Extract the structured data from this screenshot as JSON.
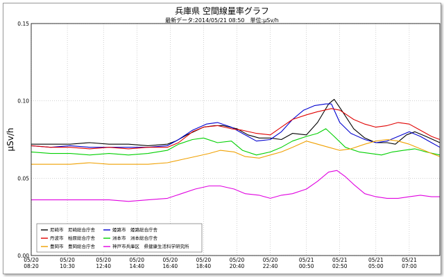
{
  "chart_data": {
    "type": "line",
    "title": "兵庫県 空間線量率グラフ",
    "subtitle": "最新データ:2014/05/21 08:50　単位:μSv/h",
    "ylabel": "μSv/h",
    "xlabel": "",
    "ylim": [
      0,
      0.15
    ],
    "yticks": [
      "0.00",
      "0.05",
      "0.10",
      "0.15"
    ],
    "xlim": [
      "05/20 08:20",
      "05/21 08:50"
    ],
    "xticks": [
      {
        "t": "05/20 08:20",
        "date": "05/20",
        "time": "08:20"
      },
      {
        "t": "05/20 10:30",
        "date": "05/20",
        "time": "10:30"
      },
      {
        "t": "05/20 12:40",
        "date": "05/20",
        "time": "12:40"
      },
      {
        "t": "05/20 14:40",
        "date": "05/20",
        "time": "14:40"
      },
      {
        "t": "05/20 16:40",
        "date": "05/20",
        "time": "16:40"
      },
      {
        "t": "05/20 18:40",
        "date": "05/20",
        "time": "18:40"
      },
      {
        "t": "05/20 20:40",
        "date": "05/20",
        "time": "20:40"
      },
      {
        "t": "05/20 22:40",
        "date": "05/20",
        "time": "22:40"
      },
      {
        "t": "05/21 00:50",
        "date": "05/21",
        "time": "00:50"
      },
      {
        "t": "05/21 02:50",
        "date": "05/21",
        "time": "02:50"
      },
      {
        "t": "05/21 05:00",
        "date": "05/21",
        "time": "05:00"
      },
      {
        "t": "05/21 07:00",
        "date": "05/21",
        "time": "07:00"
      }
    ],
    "grid": true,
    "legend_position": "bottom-left",
    "series": [
      {
        "name": "尼崎市　尼崎総合庁舎",
        "color": "#000000",
        "points": [
          [
            "05/20 08:20",
            0.072
          ],
          [
            "05/20 09:30",
            0.072
          ],
          [
            "05/20 10:40",
            0.072
          ],
          [
            "05/20 11:50",
            0.073
          ],
          [
            "05/20 13:00",
            0.072
          ],
          [
            "05/20 14:10",
            0.072
          ],
          [
            "05/20 15:20",
            0.071
          ],
          [
            "05/20 16:30",
            0.072
          ],
          [
            "05/20 17:00",
            0.074
          ],
          [
            "05/20 17:40",
            0.078
          ],
          [
            "05/20 18:40",
            0.083
          ],
          [
            "05/20 19:20",
            0.084
          ],
          [
            "05/20 19:50",
            0.084
          ],
          [
            "05/20 20:40",
            0.082
          ],
          [
            "05/20 21:20",
            0.078
          ],
          [
            "05/20 22:00",
            0.076
          ],
          [
            "05/20 22:40",
            0.076
          ],
          [
            "05/20 23:20",
            0.075
          ],
          [
            "05/21 00:00",
            0.079
          ],
          [
            "05/21 00:50",
            0.078
          ],
          [
            "05/21 01:30",
            0.086
          ],
          [
            "05/21 02:10",
            0.098
          ],
          [
            "05/21 02:30",
            0.101
          ],
          [
            "05/21 03:00",
            0.093
          ],
          [
            "05/21 03:40",
            0.082
          ],
          [
            "05/21 04:20",
            0.076
          ],
          [
            "05/21 05:00",
            0.073
          ],
          [
            "05/21 05:40",
            0.073
          ],
          [
            "05/21 06:10",
            0.072
          ],
          [
            "05/21 06:50",
            0.078
          ],
          [
            "05/21 07:20",
            0.08
          ],
          [
            "05/21 08:00",
            0.077
          ],
          [
            "05/21 08:50",
            0.073
          ]
        ]
      },
      {
        "name": "姫路市　姫路総合庁舎",
        "color": "#0000d0",
        "points": [
          [
            "05/20 08:20",
            0.071
          ],
          [
            "05/20 09:30",
            0.07
          ],
          [
            "05/20 10:40",
            0.071
          ],
          [
            "05/20 11:50",
            0.07
          ],
          [
            "05/20 13:00",
            0.07
          ],
          [
            "05/20 14:10",
            0.07
          ],
          [
            "05/20 15:20",
            0.07
          ],
          [
            "05/20 16:30",
            0.071
          ],
          [
            "05/20 17:10",
            0.075
          ],
          [
            "05/20 18:00",
            0.081
          ],
          [
            "05/20 18:50",
            0.085
          ],
          [
            "05/20 19:30",
            0.086
          ],
          [
            "05/20 20:20",
            0.083
          ],
          [
            "05/20 21:00",
            0.079
          ],
          [
            "05/20 21:50",
            0.074
          ],
          [
            "05/20 22:40",
            0.075
          ],
          [
            "05/20 23:20",
            0.08
          ],
          [
            "05/21 00:00",
            0.088
          ],
          [
            "05/21 00:40",
            0.094
          ],
          [
            "05/21 01:20",
            0.097
          ],
          [
            "05/21 02:00",
            0.098
          ],
          [
            "05/21 02:20",
            0.098
          ],
          [
            "05/21 02:50",
            0.086
          ],
          [
            "05/21 03:30",
            0.079
          ],
          [
            "05/21 04:20",
            0.075
          ],
          [
            "05/21 05:00",
            0.073
          ],
          [
            "05/21 05:40",
            0.074
          ],
          [
            "05/21 06:20",
            0.077
          ],
          [
            "05/21 07:00",
            0.08
          ],
          [
            "05/21 07:40",
            0.077
          ],
          [
            "05/21 08:20",
            0.073
          ],
          [
            "05/21 08:50",
            0.07
          ]
        ]
      },
      {
        "name": "丹波市　柏原総合庁舎",
        "color": "#e00000",
        "points": [
          [
            "05/20 08:20",
            0.071
          ],
          [
            "05/20 09:30",
            0.07
          ],
          [
            "05/20 10:40",
            0.07
          ],
          [
            "05/20 11:50",
            0.069
          ],
          [
            "05/20 13:00",
            0.07
          ],
          [
            "05/20 14:10",
            0.069
          ],
          [
            "05/20 15:20",
            0.07
          ],
          [
            "05/20 16:30",
            0.07
          ],
          [
            "05/20 17:10",
            0.073
          ],
          [
            "05/20 18:00",
            0.08
          ],
          [
            "05/20 18:40",
            0.083
          ],
          [
            "05/20 19:30",
            0.084
          ],
          [
            "05/20 20:20",
            0.082
          ],
          [
            "05/20 21:00",
            0.081
          ],
          [
            "05/20 21:50",
            0.079
          ],
          [
            "05/20 22:40",
            0.078
          ],
          [
            "05/20 23:20",
            0.083
          ],
          [
            "05/21 00:00",
            0.088
          ],
          [
            "05/21 00:50",
            0.091
          ],
          [
            "05/21 01:30",
            0.093
          ],
          [
            "05/21 02:20",
            0.095
          ],
          [
            "05/21 02:50",
            0.094
          ],
          [
            "05/21 03:40",
            0.088
          ],
          [
            "05/21 04:20",
            0.085
          ],
          [
            "05/21 05:00",
            0.083
          ],
          [
            "05/21 05:40",
            0.084
          ],
          [
            "05/21 06:20",
            0.086
          ],
          [
            "05/21 07:00",
            0.085
          ],
          [
            "05/21 07:40",
            0.081
          ],
          [
            "05/21 08:20",
            0.077
          ],
          [
            "05/21 08:50",
            0.075
          ]
        ]
      },
      {
        "name": "洲本市　洲本総合庁舎",
        "color": "#00d000",
        "points": [
          [
            "05/20 08:20",
            0.067
          ],
          [
            "05/20 09:30",
            0.066
          ],
          [
            "05/20 10:40",
            0.066
          ],
          [
            "05/20 11:50",
            0.065
          ],
          [
            "05/20 13:00",
            0.066
          ],
          [
            "05/20 14:10",
            0.065
          ],
          [
            "05/20 15:20",
            0.066
          ],
          [
            "05/20 16:30",
            0.068
          ],
          [
            "05/20 17:10",
            0.072
          ],
          [
            "05/20 18:00",
            0.075
          ],
          [
            "05/20 18:40",
            0.076
          ],
          [
            "05/20 19:30",
            0.073
          ],
          [
            "05/20 20:20",
            0.074
          ],
          [
            "05/20 21:00",
            0.068
          ],
          [
            "05/20 21:50",
            0.065
          ],
          [
            "05/20 22:40",
            0.067
          ],
          [
            "05/20 23:20",
            0.07
          ],
          [
            "05/21 00:00",
            0.074
          ],
          [
            "05/21 00:50",
            0.077
          ],
          [
            "05/21 01:30",
            0.079
          ],
          [
            "05/21 02:00",
            0.082
          ],
          [
            "05/21 02:30",
            0.077
          ],
          [
            "05/21 03:10",
            0.07
          ],
          [
            "05/21 04:00",
            0.067
          ],
          [
            "05/21 04:40",
            0.066
          ],
          [
            "05/21 05:20",
            0.065
          ],
          [
            "05/21 06:00",
            0.067
          ],
          [
            "05/21 06:40",
            0.068
          ],
          [
            "05/21 07:20",
            0.069
          ],
          [
            "05/21 08:00",
            0.067
          ],
          [
            "05/21 08:50",
            0.065
          ]
        ]
      },
      {
        "name": "豊岡市　豊岡総合庁舎",
        "color": "#f0a000",
        "points": [
          [
            "05/20 08:20",
            0.059
          ],
          [
            "05/20 09:30",
            0.059
          ],
          [
            "05/20 10:40",
            0.059
          ],
          [
            "05/20 11:50",
            0.06
          ],
          [
            "05/20 13:00",
            0.059
          ],
          [
            "05/20 14:10",
            0.059
          ],
          [
            "05/20 15:20",
            0.059
          ],
          [
            "05/20 16:30",
            0.06
          ],
          [
            "05/20 17:20",
            0.062
          ],
          [
            "05/20 18:10",
            0.064
          ],
          [
            "05/20 19:00",
            0.066
          ],
          [
            "05/20 19:40",
            0.068
          ],
          [
            "05/20 20:30",
            0.067
          ],
          [
            "05/20 21:10",
            0.064
          ],
          [
            "05/20 22:00",
            0.063
          ],
          [
            "05/20 22:40",
            0.065
          ],
          [
            "05/20 23:20",
            0.067
          ],
          [
            "05/21 00:00",
            0.07
          ],
          [
            "05/21 00:50",
            0.074
          ],
          [
            "05/21 01:30",
            0.072
          ],
          [
            "05/21 02:10",
            0.07
          ],
          [
            "05/21 02:50",
            0.068
          ],
          [
            "05/21 03:30",
            0.069
          ],
          [
            "05/21 04:20",
            0.072
          ],
          [
            "05/21 05:00",
            0.074
          ],
          [
            "05/21 05:40",
            0.075
          ],
          [
            "05/21 06:20",
            0.074
          ],
          [
            "05/21 07:00",
            0.072
          ],
          [
            "05/21 07:40",
            0.069
          ],
          [
            "05/21 08:20",
            0.066
          ],
          [
            "05/21 08:50",
            0.064
          ]
        ]
      },
      {
        "name": "神戸市兵庫区　県健康生活科学研究所",
        "color": "#e000e0",
        "points": [
          [
            "05/20 08:20",
            0.036
          ],
          [
            "05/20 09:30",
            0.036
          ],
          [
            "05/20 10:40",
            0.036
          ],
          [
            "05/20 11:50",
            0.036
          ],
          [
            "05/20 13:00",
            0.036
          ],
          [
            "05/20 14:10",
            0.035
          ],
          [
            "05/20 15:20",
            0.036
          ],
          [
            "05/20 16:30",
            0.037
          ],
          [
            "05/20 17:20",
            0.04
          ],
          [
            "05/20 18:10",
            0.043
          ],
          [
            "05/20 19:00",
            0.045
          ],
          [
            "05/20 19:40",
            0.045
          ],
          [
            "05/20 20:30",
            0.043
          ],
          [
            "05/20 21:10",
            0.04
          ],
          [
            "05/20 22:00",
            0.039
          ],
          [
            "05/20 22:40",
            0.037
          ],
          [
            "05/20 23:20",
            0.039
          ],
          [
            "05/21 00:00",
            0.04
          ],
          [
            "05/21 00:50",
            0.043
          ],
          [
            "05/21 01:30",
            0.048
          ],
          [
            "05/21 02:10",
            0.054
          ],
          [
            "05/21 02:40",
            0.055
          ],
          [
            "05/21 03:10",
            0.051
          ],
          [
            "05/21 03:40",
            0.046
          ],
          [
            "05/21 04:20",
            0.04
          ],
          [
            "05/21 05:00",
            0.038
          ],
          [
            "05/21 05:40",
            0.037
          ],
          [
            "05/21 06:20",
            0.037
          ],
          [
            "05/21 07:00",
            0.038
          ],
          [
            "05/21 07:40",
            0.039
          ],
          [
            "05/21 08:20",
            0.038
          ],
          [
            "05/21 08:50",
            0.038
          ]
        ]
      }
    ]
  }
}
